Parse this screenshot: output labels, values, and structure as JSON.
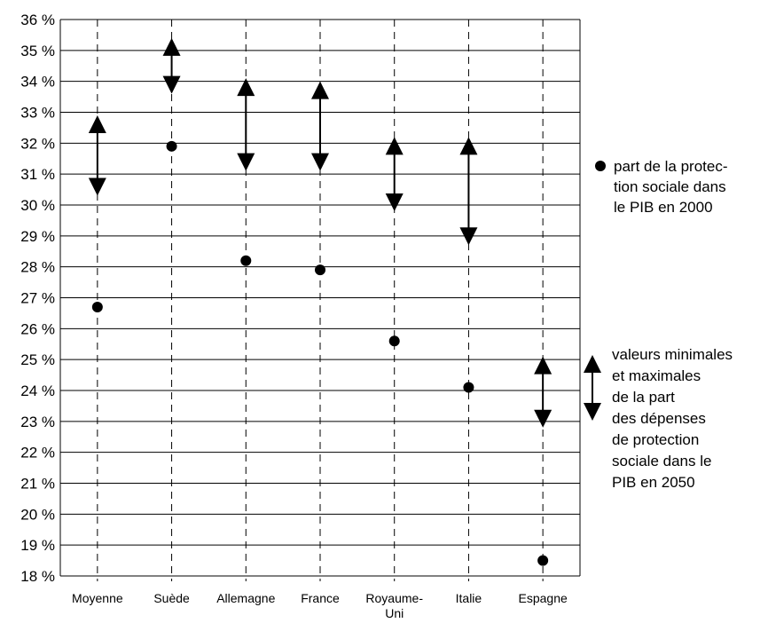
{
  "chart_data": {
    "type": "scatter",
    "categories": [
      "Moyenne",
      "Suède",
      "Allemagne",
      "France",
      "Royaume-Uni",
      "Italie",
      "Espagne"
    ],
    "category_label_lines": [
      [
        "Moyenne"
      ],
      [
        "Suède"
      ],
      [
        "Allemagne"
      ],
      [
        "France"
      ],
      [
        "Royaume-",
        "Uni"
      ],
      [
        "Italie"
      ],
      [
        "Espagne"
      ]
    ],
    "series": [
      {
        "name": "part de la protection sociale dans le PIB en 2000",
        "marker": "circle",
        "values": [
          26.7,
          31.9,
          28.2,
          27.9,
          25.6,
          24.1,
          18.5
        ]
      },
      {
        "name": "valeurs minimales et maximales de la part des dépenses de protection sociale dans le PIB en 2050",
        "marker": "double-arrow",
        "min": [
          30.3,
          33.6,
          31.1,
          31.1,
          29.8,
          28.7,
          22.8
        ],
        "max": [
          32.9,
          35.4,
          34.1,
          34.0,
          32.2,
          32.2,
          25.1
        ]
      }
    ],
    "yticks": [
      "18 %",
      "19 %",
      "20 %",
      "21 %",
      "22 %",
      "23 %",
      "24 %",
      "25 %",
      "26 %",
      "27 %",
      "28 %",
      "29 %",
      "30 %",
      "31 %",
      "32 %",
      "33 %",
      "34 %",
      "35 %",
      "36 %"
    ],
    "ylim": [
      18,
      36
    ],
    "grid": true,
    "legend": {
      "placement": "right",
      "dot_lines": [
        "part de la protec-",
        "tion sociale dans",
        "le PIB en 2000"
      ],
      "arrow_lines": [
        "valeurs minimales",
        "et maximales",
        "de la part",
        "des dépenses",
        "de protection",
        "sociale dans le",
        "PIB en 2050"
      ]
    },
    "colors": {
      "marks": "#000000",
      "grid": "#000000",
      "background": "#ffffff"
    }
  }
}
